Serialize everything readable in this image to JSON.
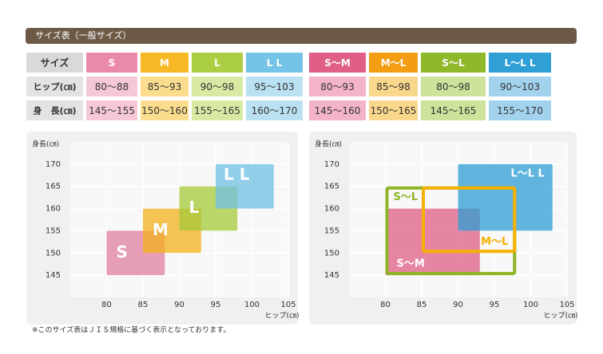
{
  "header": {
    "title": "サイズ表（一般サイズ）"
  },
  "tables": [
    {
      "columns": [
        "サイズ",
        "S",
        "M",
        "L",
        "L L"
      ],
      "colors": [
        "#d9d9d9",
        "#ea8aa8",
        "#f6b824",
        "#acce43",
        "#73c4e6"
      ],
      "light": [
        "#e3e3e3",
        "#f6c8d5",
        "#fbdd8d",
        "#d8e9a3",
        "#b9e1f2"
      ],
      "rows": [
        [
          "ヒップ(㎝)",
          "80～88",
          "85～93",
          "90～98",
          "95～103"
        ],
        [
          "身　長(㎝)",
          "145～155",
          "150～160",
          "155～165",
          "160～170"
        ]
      ]
    },
    {
      "columns": [
        "S～M",
        "M～L",
        "S～L",
        "L～L L"
      ],
      "colors": [
        "#e05f86",
        "#f39d12",
        "#8fb82a",
        "#2f9fd6"
      ],
      "light": [
        "#f2b4c6",
        "#f9d78b",
        "#cde29b",
        "#a2d2ee"
      ],
      "rows": [
        [
          "80～93",
          "85～98",
          "80～98",
          "90～103"
        ],
        [
          "145～160",
          "150～165",
          "145～165",
          "155～170"
        ]
      ]
    }
  ],
  "charts": [
    {
      "y_label": "身長(㎝)",
      "x_label": "ヒップ(㎝)",
      "xlim": [
        75,
        105
      ],
      "ylim": [
        140,
        175
      ],
      "xticks": [
        80,
        85,
        90,
        95,
        100,
        105
      ],
      "yticks": [
        145,
        150,
        155,
        160,
        165,
        170
      ],
      "boxes": [
        {
          "label": "S",
          "x": [
            80,
            88
          ],
          "y": [
            145,
            155
          ],
          "color": "#e07fa0",
          "style": "fill",
          "corner": "left"
        },
        {
          "label": "M",
          "x": [
            85,
            93
          ],
          "y": [
            150,
            160
          ],
          "color": "#f3b21c",
          "style": "fill",
          "corner": "left"
        },
        {
          "label": "L",
          "x": [
            90,
            98
          ],
          "y": [
            155,
            165
          ],
          "color": "#a6ca38",
          "style": "fill",
          "corner": "left"
        },
        {
          "label": "L L",
          "x": [
            95,
            103
          ],
          "y": [
            160,
            170
          ],
          "color": "#6fc2e4",
          "style": "fill",
          "corner": "top-left"
        }
      ]
    },
    {
      "y_label": "身長(㎝)",
      "x_label": "ヒップ(㎝)",
      "xlim": [
        75,
        105
      ],
      "ylim": [
        140,
        175
      ],
      "xticks": [
        80,
        85,
        90,
        95,
        100,
        105
      ],
      "yticks": [
        145,
        150,
        155,
        160,
        165,
        170
      ],
      "boxes": [
        {
          "label": "S～M",
          "x": [
            80,
            93
          ],
          "y": [
            145,
            160
          ],
          "color": "#df5f86",
          "style": "fill",
          "corner": "bottom-left"
        },
        {
          "label": "L～L L",
          "x": [
            90,
            103
          ],
          "y": [
            155,
            170
          ],
          "color": "#2e9ed4",
          "style": "fill",
          "corner": "top-right"
        },
        {
          "label": "S～L",
          "x": [
            80,
            98
          ],
          "y": [
            145,
            165
          ],
          "color": "#8db526",
          "style": "outline",
          "corner": "top-left"
        },
        {
          "label": "M～L",
          "x": [
            85,
            98
          ],
          "y": [
            150,
            165
          ],
          "color": "#f5b000",
          "style": "outline",
          "corner": "bottom-right"
        }
      ]
    }
  ],
  "footnote": "※このサイズ表はＪＩＳ規格に基づく表示となっております。"
}
